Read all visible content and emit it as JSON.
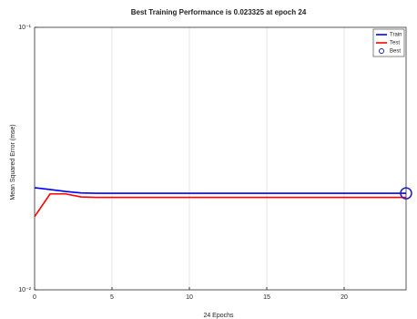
{
  "chart_data": {
    "type": "line",
    "title": "Best Training Performance is 0.023325 at epoch 24",
    "x_label": "24 Epochs",
    "y_label": "Mean Squared Error  (mse)",
    "x": [
      0,
      1,
      2,
      3,
      4,
      5,
      6,
      7,
      8,
      9,
      10,
      11,
      12,
      13,
      14,
      15,
      16,
      17,
      18,
      19,
      20,
      21,
      22,
      23,
      24
    ],
    "series": [
      {
        "name": "Train",
        "color": "#0000ff",
        "values": [
          0.0245,
          0.0241,
          0.0237,
          0.0234,
          0.02333,
          0.02333,
          0.02333,
          0.02333,
          0.02333,
          0.02333,
          0.02333,
          0.02333,
          0.02333,
          0.02333,
          0.02333,
          0.02333,
          0.02333,
          0.02333,
          0.02333,
          0.02333,
          0.02333,
          0.02333,
          0.02333,
          0.02333,
          0.023325
        ]
      },
      {
        "name": "Test",
        "color": "#ff0000",
        "values": [
          0.019,
          0.0232,
          0.0232,
          0.0226,
          0.0225,
          0.0225,
          0.0225,
          0.0225,
          0.0225,
          0.0225,
          0.0225,
          0.0225,
          0.0225,
          0.0225,
          0.0225,
          0.0225,
          0.0225,
          0.0225,
          0.0225,
          0.0225,
          0.0225,
          0.0225,
          0.0225,
          0.0225,
          0.0225
        ]
      },
      {
        "name": "Best",
        "color": "#2020c0",
        "marker": "circle",
        "x": [
          24
        ],
        "values": [
          0.023325
        ]
      }
    ],
    "xlim": [
      0,
      24
    ],
    "xticks": [
      0,
      5,
      10,
      15,
      20
    ],
    "ylim": [
      0.01,
      0.1
    ],
    "yscale": "log",
    "yticks": [
      {
        "value": 0.01,
        "label": "10⁻²"
      },
      {
        "value": 0.1,
        "label": "10⁻¹"
      }
    ],
    "grid": true,
    "legend": "top-right"
  }
}
